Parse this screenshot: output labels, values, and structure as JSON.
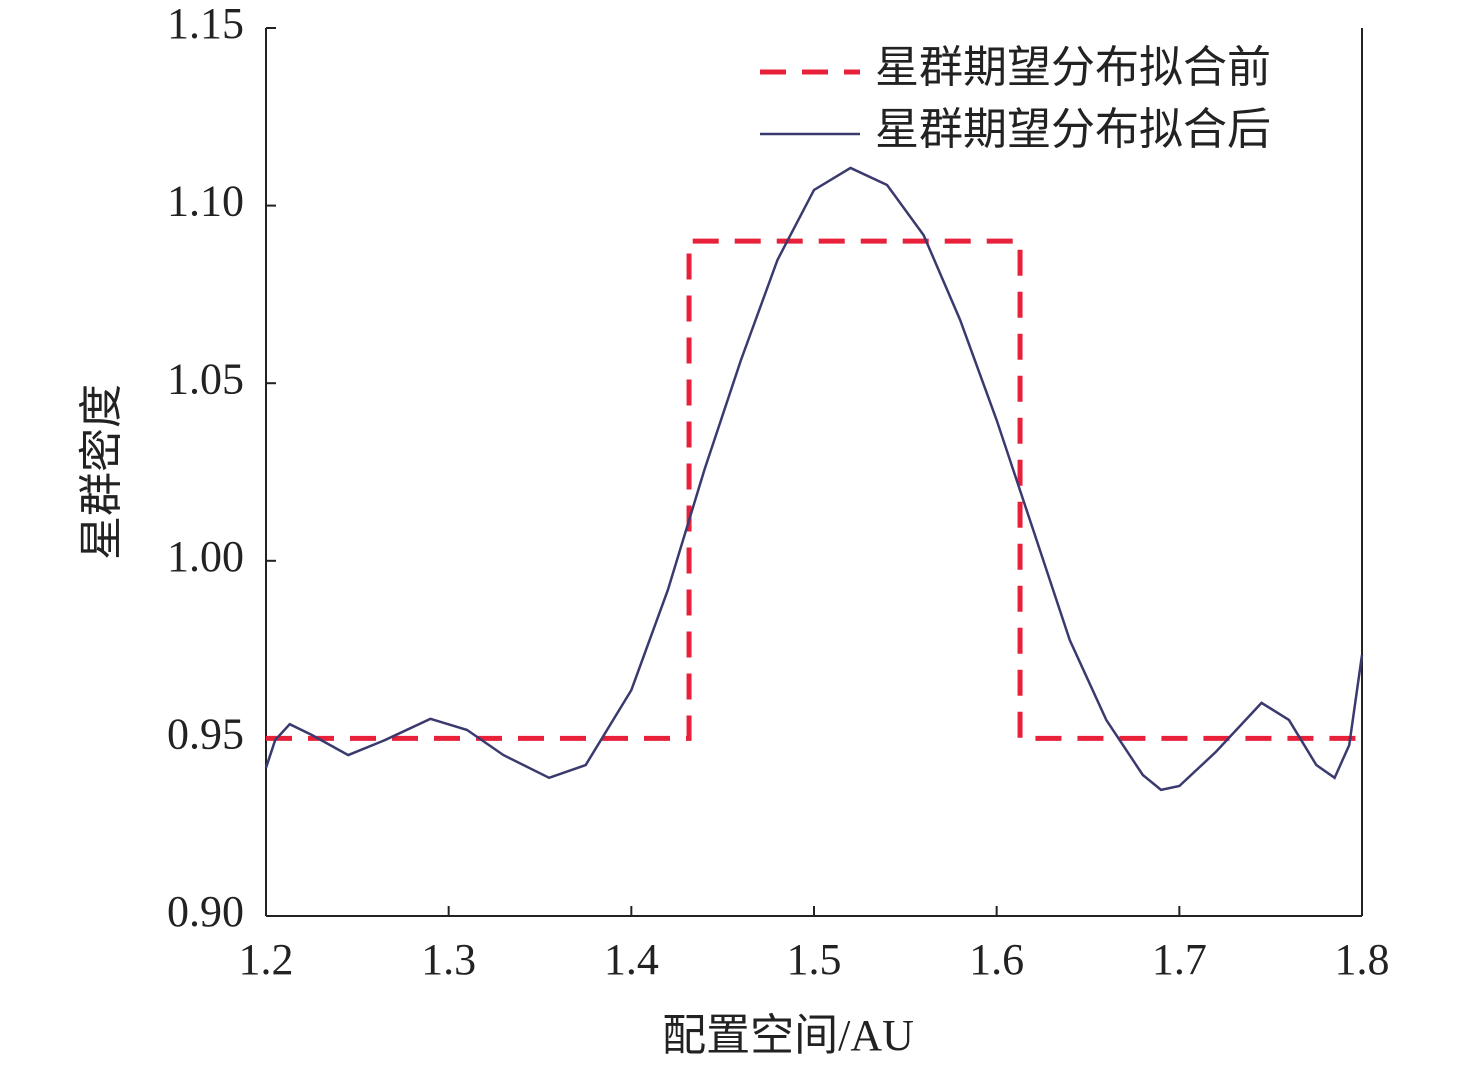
{
  "chart_data": {
    "type": "line",
    "x_label": "配置空间/AU",
    "y_label": "星群密度",
    "xlim": [
      1.2,
      1.8
    ],
    "ylim": [
      0.9,
      1.15
    ],
    "xticks": [
      1.2,
      1.3,
      1.4,
      1.5,
      1.6,
      1.7,
      1.8
    ],
    "yticks": [
      {
        "value": 0.9,
        "label": "0.90"
      },
      0.95,
      {
        "value": 1.0,
        "label": "1.00"
      },
      1.05,
      {
        "value": 1.1,
        "label": "1.10"
      },
      1.15
    ],
    "legend": "upper right",
    "series": [
      {
        "name": "星群期望分布拟合前",
        "color": "#e8203a",
        "dashed": true,
        "x": [
          1.2,
          1.4316,
          1.4316,
          1.6128,
          1.6128,
          1.8
        ],
        "values": [
          0.95,
          0.95,
          1.09,
          1.09,
          0.95,
          0.95
        ]
      },
      {
        "name": "星群期望分布拟合后",
        "color": "#3a3a6e",
        "dashed": false,
        "x": [
          1.2,
          1.205,
          1.213,
          1.225,
          1.245,
          1.265,
          1.29,
          1.31,
          1.33,
          1.355,
          1.375,
          1.4,
          1.42,
          1.44,
          1.46,
          1.48,
          1.5,
          1.52,
          1.54,
          1.56,
          1.58,
          1.6,
          1.62,
          1.64,
          1.66,
          1.68,
          1.69,
          1.7,
          1.72,
          1.745,
          1.76,
          1.775,
          1.785,
          1.793,
          1.8
        ],
        "values": [
          0.9417,
          0.9495,
          0.954,
          0.951,
          0.9453,
          0.9495,
          0.9555,
          0.9524,
          0.9453,
          0.9389,
          0.9425,
          0.9636,
          0.9918,
          1.0256,
          1.0565,
          1.0847,
          1.1044,
          1.1106,
          1.1058,
          1.0917,
          1.0678,
          1.0396,
          1.0087,
          0.9777,
          0.9552,
          0.9397,
          0.9355,
          0.9366,
          0.9462,
          0.96,
          0.9552,
          0.9425,
          0.9389,
          0.9481,
          0.9735
        ]
      }
    ]
  }
}
